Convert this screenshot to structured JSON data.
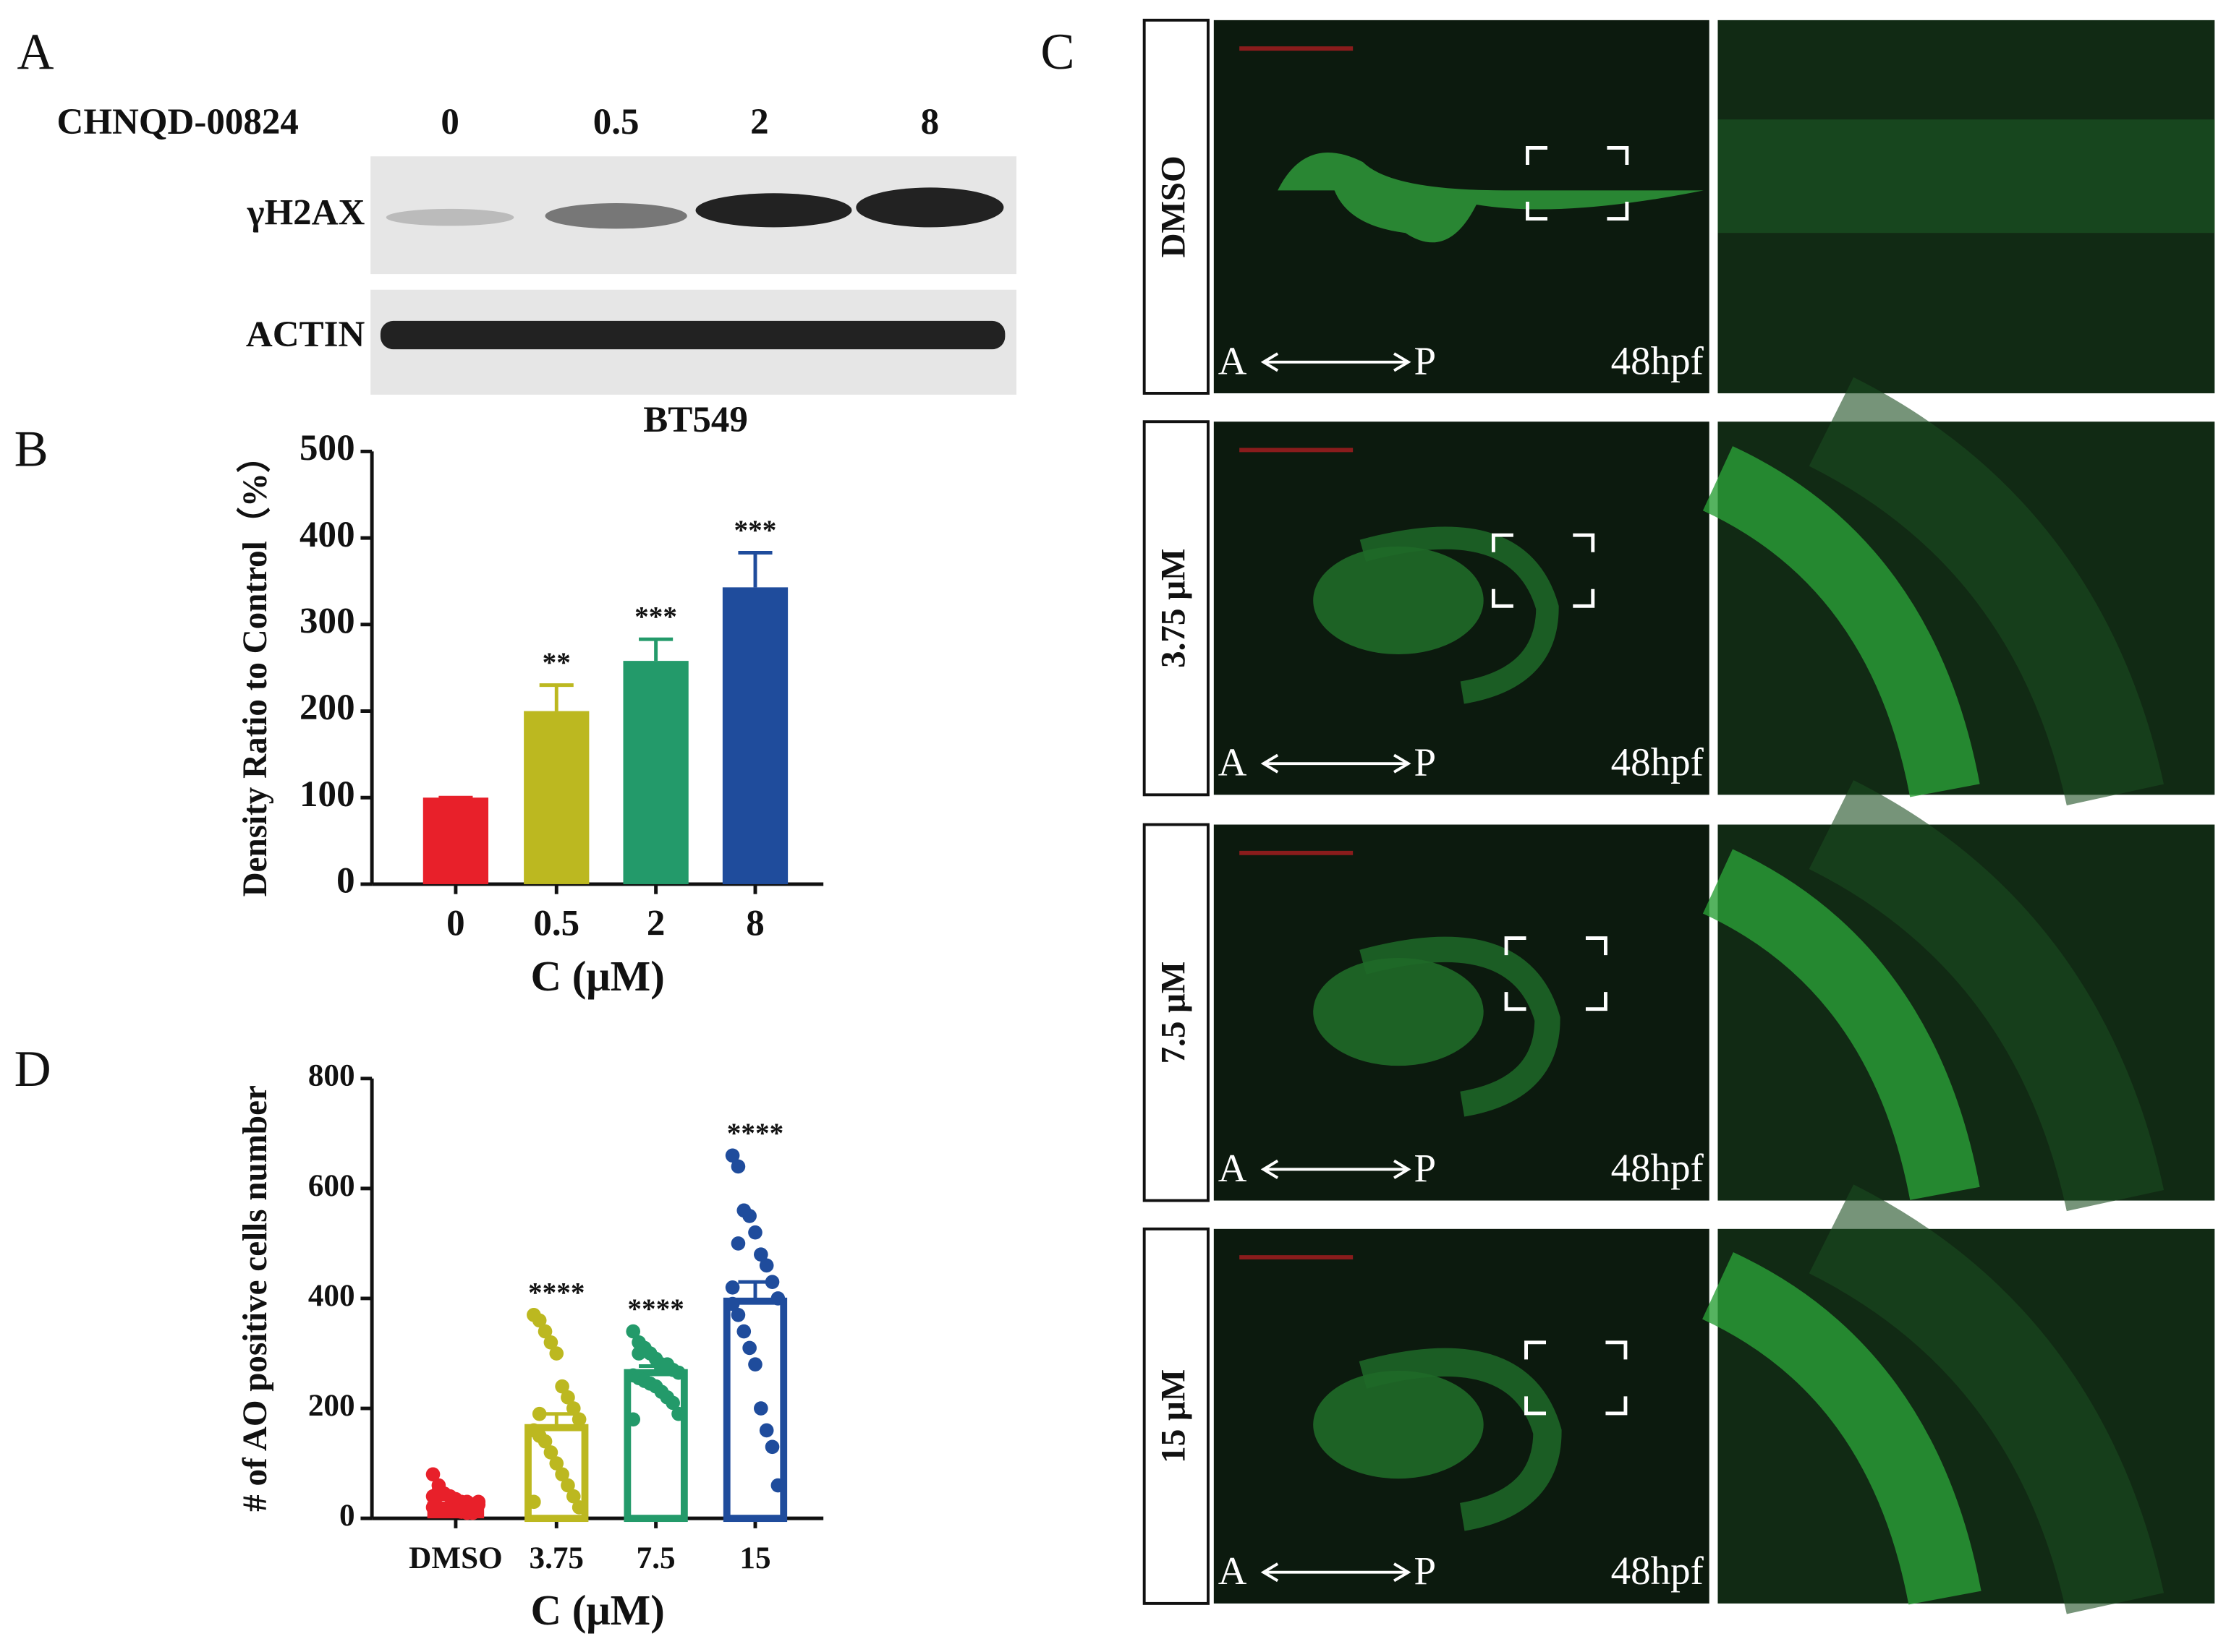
{
  "panels": {
    "A": {
      "label": "A",
      "treatment": "CHNQD-00824",
      "doses": [
        "0",
        "0.5",
        "2",
        "8"
      ],
      "bands": [
        "γH2AX",
        "ACTIN"
      ],
      "cell_line": "BT549"
    },
    "C": {
      "label": "C",
      "conditions": [
        "DMSO",
        "3.75 μM",
        "7.5 μM",
        "15 μM"
      ],
      "axis_start": "A",
      "axis_end": "P",
      "stage": "48hpf"
    }
  },
  "chart_data": [
    {
      "type": "bar",
      "label": "B",
      "ylabel": "Density Ratio to Control（%）",
      "xlabel": "C (μM)",
      "categories": [
        "0",
        "0.5",
        "2",
        "8"
      ],
      "values": [
        100,
        200,
        258,
        343
      ],
      "errors": [
        0,
        30,
        25,
        40
      ],
      "colors": [
        "#e8202a",
        "#bcb820",
        "#239a6a",
        "#1f4c9c"
      ],
      "annotations": [
        null,
        "**",
        "***",
        "***"
      ],
      "ylim": [
        0,
        500
      ],
      "yticks": [
        0,
        100,
        200,
        300,
        400,
        500
      ]
    },
    {
      "type": "bar",
      "label": "D",
      "ylabel": "# of AO positive cells number",
      "xlabel": "C (μM)",
      "bar_style": "outline",
      "categories": [
        "DMSO",
        "3.75",
        "7.5",
        "15"
      ],
      "values": [
        30,
        165,
        265,
        395
      ],
      "errors": [
        5,
        25,
        12,
        35
      ],
      "colors": [
        "#e8202a",
        "#bcb820",
        "#239a6a",
        "#1f4c9c"
      ],
      "annotations": [
        null,
        "****",
        "****",
        "****"
      ],
      "points": [
        [
          80,
          60,
          45,
          40,
          35,
          30,
          30,
          25,
          25,
          20,
          20,
          18,
          15,
          15,
          12,
          10,
          10,
          30,
          40,
          50
        ],
        [
          370,
          360,
          340,
          320,
          300,
          240,
          220,
          200,
          180,
          160,
          150,
          140,
          120,
          100,
          80,
          60,
          40,
          20,
          30,
          190
        ],
        [
          340,
          320,
          310,
          300,
          290,
          280,
          280,
          270,
          265,
          260,
          255,
          250,
          245,
          240,
          230,
          220,
          210,
          190,
          180,
          300
        ],
        [
          660,
          640,
          560,
          550,
          520,
          480,
          460,
          430,
          400,
          390,
          370,
          340,
          310,
          280,
          200,
          160,
          130,
          60,
          420,
          500
        ]
      ],
      "ylim": [
        0,
        800
      ],
      "yticks": [
        0,
        200,
        400,
        600,
        800
      ]
    }
  ]
}
